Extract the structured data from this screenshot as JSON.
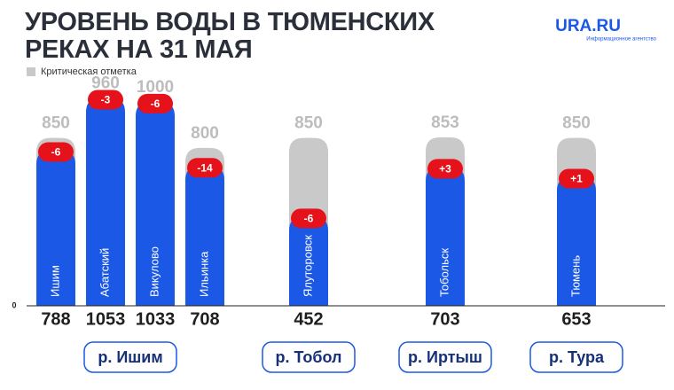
{
  "chart_data": {
    "type": "bar",
    "title": "УРОВЕНЬ ВОДЫ В ТЮМЕНСКИХ РЕКАХ НА 31 МАЯ",
    "brand": "URA.RU",
    "brand_subtitle": "Информационное агентство",
    "categories": [
      "Ишим",
      "Абатский",
      "Викулово",
      "Ильинка",
      "Ялуторовск",
      "Тобольск",
      "Тюмень"
    ],
    "rivers": [
      "р. Ишим",
      null,
      null,
      null,
      "р. Тобол",
      "р. Иртыш",
      "р. Тура"
    ],
    "series": [
      {
        "name": "Критическая отметка",
        "color": "#c9c9c9",
        "values": [
          850,
          960,
          1000,
          800,
          850,
          853,
          850
        ]
      },
      {
        "color": "#1b58e6",
        "values": [
          788,
          1053,
          1033,
          708,
          452,
          703,
          653
        ]
      }
    ],
    "changes": {
      "color": "#e5121b",
      "values": [
        -6,
        -3,
        -6,
        -14,
        -6,
        3,
        1
      ],
      "value_labels": [
        "-6",
        "-3",
        "-6",
        "-14",
        "-6",
        "+3",
        "+1"
      ]
    },
    "ylim": [
      0,
      1100
    ],
    "yticks": [
      0
    ]
  }
}
